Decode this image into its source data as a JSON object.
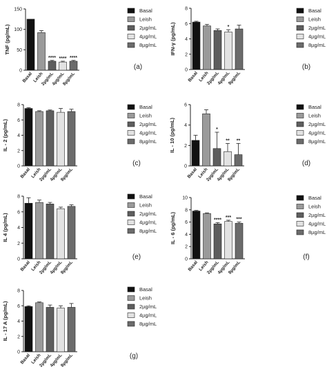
{
  "legend_labels": [
    "Basal",
    "Leish",
    "2µg/mL",
    "4µg/mL",
    "8µg/mL"
  ],
  "bar_colors": [
    "#111111",
    "#9a9a9a",
    "#5e5e5e",
    "#e2e2e2",
    "#6b6b6b"
  ],
  "chart_data": [
    {
      "type": "bar",
      "panel_label": "(a)",
      "ylabel": "TNF (pg/mL)",
      "categories": [
        "Basal",
        "Leish",
        "2µg/mL",
        "4µg/mL",
        "8µg/mL"
      ],
      "values": [
        125,
        92,
        22,
        20,
        22
      ],
      "errors": [
        0,
        5,
        2,
        2,
        2
      ],
      "significance": [
        "",
        "",
        "****",
        "****",
        "****"
      ],
      "ylim": [
        0,
        150
      ],
      "yticks": [
        0,
        50,
        100,
        150
      ]
    },
    {
      "type": "bar",
      "panel_label": "(b)",
      "ylabel": "IFN-γ (pg/mL)",
      "categories": [
        "Basal",
        "Leish",
        "2µg/mL",
        "4µg/mL",
        "8µg/mL"
      ],
      "values": [
        6.2,
        5.7,
        5.1,
        4.9,
        5.3
      ],
      "errors": [
        0.1,
        0.2,
        0.2,
        0.3,
        0.5
      ],
      "significance": [
        "",
        "",
        "",
        "*",
        ""
      ],
      "ylim": [
        0,
        8
      ],
      "yticks": [
        0,
        2,
        4,
        6,
        8
      ]
    },
    {
      "type": "bar",
      "panel_label": "(c)",
      "ylabel": "IL - 2 (pg/mL)",
      "categories": [
        "Basal",
        "Leish",
        "2µg/mL",
        "4µg/mL",
        "8µg/mL"
      ],
      "values": [
        7.5,
        7.1,
        7.2,
        7.0,
        7.1
      ],
      "errors": [
        0.1,
        0.1,
        0.1,
        0.5,
        0.3
      ],
      "significance": [
        "",
        "",
        "",
        "",
        ""
      ],
      "ylim": [
        0,
        8
      ],
      "yticks": [
        0,
        2,
        4,
        6,
        8
      ]
    },
    {
      "type": "bar",
      "panel_label": "(d)",
      "ylabel": "IL - 10 (pg/mL)",
      "categories": [
        "Basal",
        "Leish",
        "2µg/mL",
        "4µg/mL",
        "8µg/mL"
      ],
      "values": [
        2.5,
        5.1,
        1.7,
        1.4,
        1.1
      ],
      "errors": [
        0.5,
        0.4,
        1.6,
        0.8,
        1.1
      ],
      "significance": [
        "",
        "",
        "*",
        "**",
        "**"
      ],
      "ylim": [
        0,
        6
      ],
      "yticks": [
        0,
        2,
        4,
        6
      ]
    },
    {
      "type": "bar",
      "panel_label": "(e)",
      "ylabel": "IL 4 (pg/mL)",
      "categories": [
        "Basal",
        "Leish",
        "2µg/mL",
        "4µg/mL",
        "8µg/mL"
      ],
      "values": [
        7.1,
        7.2,
        7.0,
        6.4,
        6.7
      ],
      "errors": [
        0.7,
        0.3,
        0.2,
        0.2,
        0.2
      ],
      "significance": [
        "",
        "",
        "",
        "",
        ""
      ],
      "ylim": [
        0,
        8
      ],
      "yticks": [
        0,
        2,
        4,
        6,
        8
      ]
    },
    {
      "type": "bar",
      "panel_label": "(f)",
      "ylabel": "IL - 6 (pg/mL)",
      "categories": [
        "Basal",
        "Leish",
        "2µg/mL",
        "4µg/mL",
        "8µg/mL"
      ],
      "values": [
        7.8,
        7.4,
        5.7,
        6.1,
        5.8
      ],
      "errors": [
        0.1,
        0.1,
        0.2,
        0.2,
        0.2
      ],
      "significance": [
        "",
        "",
        "****",
        "***",
        "***"
      ],
      "ylim": [
        0,
        10
      ],
      "yticks": [
        0,
        2,
        4,
        6,
        8,
        10
      ]
    },
    {
      "type": "bar",
      "panel_label": "(g)",
      "ylabel": "IL - 17 A (pg/mL)",
      "categories": [
        "Basal",
        "Leish",
        "2µg/mL",
        "4µg/mL",
        "8µg/mL"
      ],
      "values": [
        5.9,
        6.4,
        5.8,
        5.7,
        5.8
      ],
      "errors": [
        0.1,
        0.1,
        0.3,
        0.3,
        0.5
      ],
      "significance": [
        "",
        "",
        "",
        "",
        ""
      ],
      "ylim": [
        0,
        8
      ],
      "yticks": [
        0,
        2,
        4,
        6,
        8
      ]
    }
  ]
}
